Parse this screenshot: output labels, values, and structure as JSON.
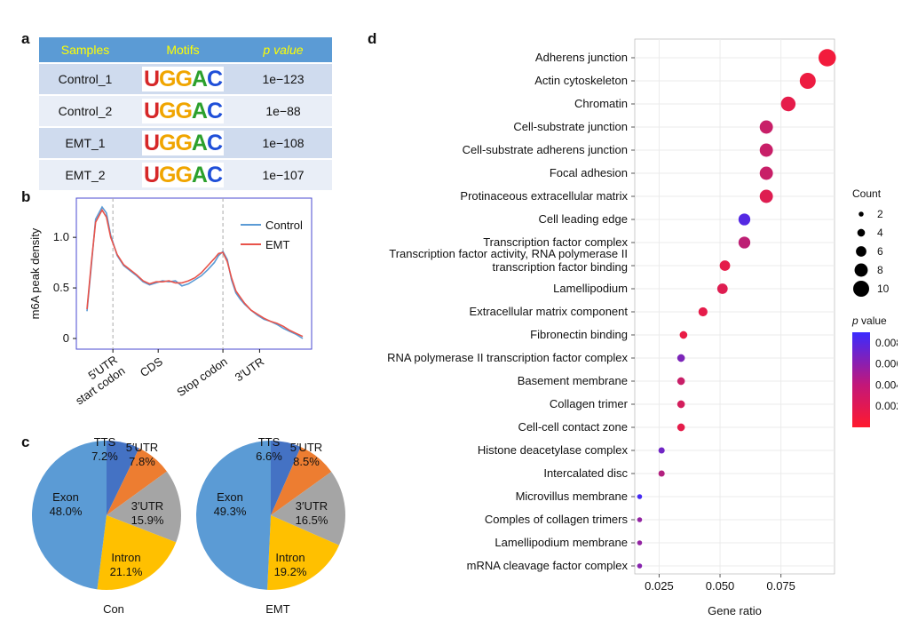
{
  "panels": {
    "a": "a",
    "b": "b",
    "c": "c",
    "d": "d"
  },
  "motif_table": {
    "headers": [
      "Samples",
      "Motifs",
      "p value"
    ],
    "rows": [
      {
        "sample": "Control_1",
        "motif": "UGGAC",
        "pvalue": "1e−123"
      },
      {
        "sample": "Control_2",
        "motif": "UGGAC",
        "pvalue": "1e−88"
      },
      {
        "sample": "EMT_1",
        "motif": "UGGAC",
        "pvalue": "1e−108"
      },
      {
        "sample": "EMT_2",
        "motif": "UGGAC",
        "pvalue": "1e−107"
      }
    ]
  },
  "chart_data": [
    {
      "type": "line",
      "ylabel": "m6A peak density",
      "ylim": [
        0,
        1.3
      ],
      "yticks": [
        0,
        0.5,
        1.0
      ],
      "ytick_labels": [
        "0",
        "0.5",
        "1.0"
      ],
      "xticks": [
        {
          "pos": 0.12,
          "label": "5′UTR start codon"
        },
        {
          "pos": 0.33,
          "label": "CDS"
        },
        {
          "pos": 0.63,
          "label": "Stop codon"
        },
        {
          "pos": 0.8,
          "label": "3′UTR"
        }
      ],
      "series": [
        {
          "name": "Control",
          "color": "#5b9bd5",
          "x": [
            0.0,
            0.02,
            0.04,
            0.07,
            0.09,
            0.11,
            0.14,
            0.17,
            0.2,
            0.23,
            0.26,
            0.29,
            0.32,
            0.35,
            0.38,
            0.41,
            0.44,
            0.47,
            0.5,
            0.53,
            0.56,
            0.59,
            0.61,
            0.63,
            0.65,
            0.67,
            0.69,
            0.71,
            0.73,
            0.76,
            0.79,
            0.82,
            0.85,
            0.88,
            0.91,
            0.94,
            0.97,
            1.0
          ],
          "y": [
            0.27,
            0.72,
            1.18,
            1.3,
            1.24,
            1.02,
            0.82,
            0.72,
            0.67,
            0.62,
            0.56,
            0.53,
            0.55,
            0.57,
            0.56,
            0.57,
            0.52,
            0.54,
            0.58,
            0.62,
            0.68,
            0.75,
            0.82,
            0.86,
            0.78,
            0.58,
            0.45,
            0.39,
            0.34,
            0.28,
            0.23,
            0.19,
            0.17,
            0.14,
            0.1,
            0.07,
            0.04,
            0.0
          ]
        },
        {
          "name": "EMT",
          "color": "#e8534a",
          "x": [
            0.0,
            0.02,
            0.04,
            0.07,
            0.09,
            0.11,
            0.14,
            0.17,
            0.2,
            0.23,
            0.26,
            0.29,
            0.32,
            0.35,
            0.38,
            0.41,
            0.44,
            0.47,
            0.5,
            0.53,
            0.56,
            0.59,
            0.61,
            0.63,
            0.65,
            0.67,
            0.69,
            0.71,
            0.73,
            0.76,
            0.79,
            0.82,
            0.85,
            0.88,
            0.91,
            0.94,
            0.97,
            1.0
          ],
          "y": [
            0.29,
            0.75,
            1.15,
            1.27,
            1.2,
            1.0,
            0.83,
            0.73,
            0.68,
            0.63,
            0.57,
            0.54,
            0.56,
            0.56,
            0.57,
            0.55,
            0.55,
            0.57,
            0.6,
            0.65,
            0.72,
            0.79,
            0.84,
            0.85,
            0.76,
            0.6,
            0.47,
            0.41,
            0.35,
            0.28,
            0.24,
            0.2,
            0.17,
            0.15,
            0.12,
            0.08,
            0.05,
            0.02
          ]
        }
      ]
    },
    {
      "type": "pie",
      "title": "Con",
      "slices": [
        {
          "label": "TTS",
          "value": 7.2,
          "display": "7.2%",
          "color": "#4472c4"
        },
        {
          "label": "5′UTR",
          "value": 7.8,
          "display": "7.8%",
          "color": "#ed7d31"
        },
        {
          "label": "3′UTR",
          "value": 15.9,
          "display": "15.9%",
          "color": "#a5a5a5"
        },
        {
          "label": "Intron",
          "value": 21.1,
          "display": "21.1%",
          "color": "#ffc000"
        },
        {
          "label": "Exon",
          "value": 48.0,
          "display": "48.0%",
          "color": "#5b9bd5"
        }
      ]
    },
    {
      "type": "pie",
      "title": "EMT",
      "slices": [
        {
          "label": "TTS",
          "value": 6.6,
          "display": "6.6%",
          "color": "#4472c4"
        },
        {
          "label": "5′UTR",
          "value": 8.5,
          "display": "8.5%",
          "color": "#ed7d31"
        },
        {
          "label": "3′UTR",
          "value": 16.5,
          "display": "16.5%",
          "color": "#a5a5a5"
        },
        {
          "label": "Intron",
          "value": 19.2,
          "display": "19.2%",
          "color": "#ffc000"
        },
        {
          "label": "Exon",
          "value": 49.3,
          "display": "49.3%",
          "color": "#5b9bd5"
        }
      ]
    },
    {
      "type": "scatter",
      "xlabel": "Gene ratio",
      "xlim": [
        0.015,
        0.097
      ],
      "xticks": [
        0.025,
        0.05,
        0.075
      ],
      "xtick_labels": [
        "0.025",
        "0.050",
        "0.075"
      ],
      "categories": [
        "Adherens junction",
        "Actin cytoskeleton",
        "Chromatin",
        "Cell-substrate junction",
        "Cell-substrate adherens junction",
        "Focal adhesion",
        "Protinaceous extracellular matrix",
        "Cell leading edge",
        "Transcription factor complex",
        "Transcription factor activity, RNA polymerase II transcription factor binding",
        "Lamellipodium",
        "Extracellular matrix component",
        "Fibronectin binding",
        "RNA polymerase II transcription factor complex",
        "Basement membrane",
        "Collagen trimer",
        "Cell-cell contact zone",
        "Histone deacetylase complex",
        "Intercalated disc",
        "Microvillus membrane",
        "Comples of collagen trimers",
        "Lamellipodium membrane",
        "mRNA cleavage factor complex"
      ],
      "points": [
        {
          "ratio": 0.094,
          "count": 11,
          "p": 0.0006
        },
        {
          "ratio": 0.086,
          "count": 10,
          "p": 0.0008
        },
        {
          "ratio": 0.078,
          "count": 9,
          "p": 0.0012
        },
        {
          "ratio": 0.069,
          "count": 8,
          "p": 0.0025
        },
        {
          "ratio": 0.069,
          "count": 8,
          "p": 0.0025
        },
        {
          "ratio": 0.069,
          "count": 8,
          "p": 0.0025
        },
        {
          "ratio": 0.069,
          "count": 8,
          "p": 0.0015
        },
        {
          "ratio": 0.06,
          "count": 7,
          "p": 0.0078
        },
        {
          "ratio": 0.06,
          "count": 7,
          "p": 0.003
        },
        {
          "ratio": 0.052,
          "count": 6,
          "p": 0.0012
        },
        {
          "ratio": 0.051,
          "count": 6,
          "p": 0.0015
        },
        {
          "ratio": 0.043,
          "count": 5,
          "p": 0.0012
        },
        {
          "ratio": 0.035,
          "count": 4,
          "p": 0.001
        },
        {
          "ratio": 0.034,
          "count": 4,
          "p": 0.006
        },
        {
          "ratio": 0.034,
          "count": 4,
          "p": 0.0025
        },
        {
          "ratio": 0.034,
          "count": 4,
          "p": 0.002
        },
        {
          "ratio": 0.034,
          "count": 4,
          "p": 0.0012
        },
        {
          "ratio": 0.026,
          "count": 3,
          "p": 0.0065
        },
        {
          "ratio": 0.026,
          "count": 3,
          "p": 0.0035
        },
        {
          "ratio": 0.017,
          "count": 2,
          "p": 0.0085
        },
        {
          "ratio": 0.017,
          "count": 2,
          "p": 0.005
        },
        {
          "ratio": 0.017,
          "count": 2,
          "p": 0.005
        },
        {
          "ratio": 0.017,
          "count": 2,
          "p": 0.0055
        }
      ],
      "size_legend": {
        "title": "Count",
        "values": [
          2,
          4,
          6,
          8,
          10
        ],
        "labels": [
          "2",
          "4",
          "6",
          "8",
          "10"
        ]
      },
      "color_legend": {
        "title": "p value",
        "ticks": [
          0.008,
          0.006,
          0.004,
          0.002
        ],
        "tick_labels": [
          "0.008",
          "0.006",
          "0.004",
          "0.002"
        ],
        "range": [
          0.0,
          0.009
        ],
        "low_color": "#ff1a2e",
        "high_color": "#3a2bff"
      }
    }
  ]
}
